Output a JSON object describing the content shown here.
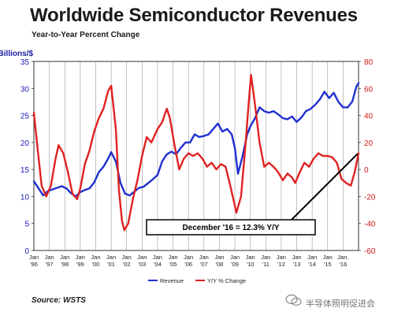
{
  "header": {
    "title": "Worldwide Semiconductor Revenues",
    "subtitle": "Year-to-Year Percent Change"
  },
  "footer": {
    "source": "Source: WSTS",
    "watermark": "半导体照明促进会"
  },
  "chart_data": {
    "type": "line",
    "left_axis_label": "Billions/$",
    "left_ylim": [
      0,
      35
    ],
    "left_ticks": [
      "0",
      "5",
      "10",
      "15",
      "20",
      "25",
      "30",
      "35"
    ],
    "right_ylim": [
      -60,
      80
    ],
    "right_ticks": [
      "-60",
      "-40",
      "-20",
      "0",
      "20",
      "40",
      "60",
      "80"
    ],
    "x_range": [
      1996,
      2017
    ],
    "x_tick_labels": [
      {
        "month": "Jan",
        "year": "'96"
      },
      {
        "month": "Jan",
        "year": "'97"
      },
      {
        "month": "Jan",
        "year": "'98"
      },
      {
        "month": "Jan",
        "year": "'99"
      },
      {
        "month": "Jan",
        "year": "'00"
      },
      {
        "month": "Jan",
        "year": "'01"
      },
      {
        "month": "Jan",
        "year": "'02"
      },
      {
        "month": "Jan",
        "year": "'03"
      },
      {
        "month": "Jan",
        "year": "'04"
      },
      {
        "month": "Jan",
        "year": "'05"
      },
      {
        "month": "Jan",
        "year": "'06"
      },
      {
        "month": "Jan",
        "year": "'07"
      },
      {
        "month": "Jan",
        "year": "'08"
      },
      {
        "month": "Jan",
        "year": "'09"
      },
      {
        "month": "Jan",
        "year": "'10"
      },
      {
        "month": "Jan",
        "year": "'11"
      },
      {
        "month": "Jan",
        "year": "'12"
      },
      {
        "month": "Jan",
        "year": "'13"
      },
      {
        "month": "Jan",
        "year": "'14"
      },
      {
        "month": "Jan",
        "year": "'15"
      },
      {
        "month": "Jan.",
        "year": "'16"
      }
    ],
    "grid": "vertical",
    "legend_position": "bottom",
    "series": [
      {
        "name": "Revenue",
        "axis": "left",
        "color": "#1f2fd0",
        "points": [
          [
            1996.0,
            12.8
          ],
          [
            1996.3,
            11.5
          ],
          [
            1996.6,
            10.2
          ],
          [
            1996.9,
            11.0
          ],
          [
            1997.2,
            11.3
          ],
          [
            1997.5,
            11.6
          ],
          [
            1997.8,
            11.9
          ],
          [
            1998.1,
            11.5
          ],
          [
            1998.4,
            10.6
          ],
          [
            1998.7,
            10.0
          ],
          [
            1999.0,
            10.8
          ],
          [
            1999.3,
            11.2
          ],
          [
            1999.6,
            11.5
          ],
          [
            1999.9,
            12.6
          ],
          [
            2000.2,
            14.5
          ],
          [
            2000.5,
            15.5
          ],
          [
            2000.8,
            17.0
          ],
          [
            2001.0,
            18.2
          ],
          [
            2001.3,
            16.5
          ],
          [
            2001.6,
            12.5
          ],
          [
            2001.9,
            10.5
          ],
          [
            2002.2,
            10.2
          ],
          [
            2002.5,
            10.9
          ],
          [
            2002.8,
            11.6
          ],
          [
            2003.1,
            11.8
          ],
          [
            2003.4,
            12.5
          ],
          [
            2003.7,
            13.2
          ],
          [
            2004.0,
            14.0
          ],
          [
            2004.3,
            16.5
          ],
          [
            2004.6,
            17.8
          ],
          [
            2004.9,
            18.3
          ],
          [
            2005.2,
            17.8
          ],
          [
            2005.5,
            19.0
          ],
          [
            2005.8,
            20.0
          ],
          [
            2006.1,
            20.0
          ],
          [
            2006.4,
            21.5
          ],
          [
            2006.7,
            21.0
          ],
          [
            2007.0,
            21.2
          ],
          [
            2007.3,
            21.5
          ],
          [
            2007.6,
            22.5
          ],
          [
            2007.9,
            23.5
          ],
          [
            2008.2,
            22.0
          ],
          [
            2008.5,
            22.5
          ],
          [
            2008.8,
            21.5
          ],
          [
            2009.0,
            19.0
          ],
          [
            2009.2,
            14.2
          ],
          [
            2009.5,
            17.5
          ],
          [
            2009.8,
            21.5
          ],
          [
            2010.0,
            23.0
          ],
          [
            2010.3,
            24.5
          ],
          [
            2010.6,
            26.5
          ],
          [
            2010.9,
            25.8
          ],
          [
            2011.2,
            25.5
          ],
          [
            2011.5,
            25.8
          ],
          [
            2011.8,
            25.2
          ],
          [
            2012.1,
            24.5
          ],
          [
            2012.4,
            24.3
          ],
          [
            2012.7,
            24.8
          ],
          [
            2013.0,
            23.8
          ],
          [
            2013.3,
            24.6
          ],
          [
            2013.6,
            25.8
          ],
          [
            2013.9,
            26.2
          ],
          [
            2014.2,
            27.0
          ],
          [
            2014.5,
            28.0
          ],
          [
            2014.8,
            29.4
          ],
          [
            2015.1,
            28.2
          ],
          [
            2015.4,
            29.2
          ],
          [
            2015.7,
            27.5
          ],
          [
            2016.0,
            26.5
          ],
          [
            2016.3,
            26.5
          ],
          [
            2016.6,
            27.6
          ],
          [
            2016.85,
            30.3
          ],
          [
            2017.0,
            31.0
          ]
        ]
      },
      {
        "name": "Y/Y % Change",
        "axis": "right",
        "color": "#e02222",
        "points": [
          [
            1996.0,
            42
          ],
          [
            1996.2,
            20
          ],
          [
            1996.5,
            -12
          ],
          [
            1996.8,
            -20
          ],
          [
            1997.1,
            -12
          ],
          [
            1997.4,
            8
          ],
          [
            1997.6,
            18
          ],
          [
            1997.9,
            12
          ],
          [
            1998.2,
            -2
          ],
          [
            1998.5,
            -18
          ],
          [
            1998.8,
            -22
          ],
          [
            1999.0,
            -14
          ],
          [
            1999.3,
            4
          ],
          [
            1999.6,
            14
          ],
          [
            1999.9,
            28
          ],
          [
            2000.2,
            38
          ],
          [
            2000.5,
            45
          ],
          [
            2000.8,
            58
          ],
          [
            2001.0,
            62
          ],
          [
            2001.3,
            30
          ],
          [
            2001.5,
            -15
          ],
          [
            2001.7,
            -38
          ],
          [
            2001.85,
            -45
          ],
          [
            2002.1,
            -40
          ],
          [
            2002.4,
            -22
          ],
          [
            2002.7,
            -8
          ],
          [
            2003.0,
            10
          ],
          [
            2003.3,
            24
          ],
          [
            2003.6,
            20
          ],
          [
            2004.0,
            30
          ],
          [
            2004.3,
            35
          ],
          [
            2004.6,
            45
          ],
          [
            2004.8,
            38
          ],
          [
            2005.1,
            18
          ],
          [
            2005.4,
            0
          ],
          [
            2005.7,
            8
          ],
          [
            2006.0,
            12
          ],
          [
            2006.3,
            10
          ],
          [
            2006.6,
            12
          ],
          [
            2006.9,
            8
          ],
          [
            2007.2,
            2
          ],
          [
            2007.5,
            5
          ],
          [
            2007.8,
            0
          ],
          [
            2008.1,
            4
          ],
          [
            2008.4,
            2
          ],
          [
            2008.7,
            -12
          ],
          [
            2008.9,
            -22
          ],
          [
            2009.1,
            -32
          ],
          [
            2009.4,
            -20
          ],
          [
            2009.7,
            20
          ],
          [
            2009.9,
            50
          ],
          [
            2010.05,
            70
          ],
          [
            2010.3,
            48
          ],
          [
            2010.6,
            20
          ],
          [
            2010.9,
            2
          ],
          [
            2011.2,
            5
          ],
          [
            2011.5,
            2
          ],
          [
            2011.8,
            -2
          ],
          [
            2012.1,
            -8
          ],
          [
            2012.4,
            -3
          ],
          [
            2012.7,
            -6
          ],
          [
            2012.9,
            -10
          ],
          [
            2013.2,
            -2
          ],
          [
            2013.5,
            5
          ],
          [
            2013.8,
            2
          ],
          [
            2014.1,
            8
          ],
          [
            2014.4,
            12
          ],
          [
            2014.7,
            10
          ],
          [
            2015.0,
            10
          ],
          [
            2015.3,
            9
          ],
          [
            2015.6,
            5
          ],
          [
            2015.9,
            -7
          ],
          [
            2016.2,
            -10
          ],
          [
            2016.5,
            -12
          ],
          [
            2016.75,
            -2
          ],
          [
            2017.0,
            12
          ]
        ]
      }
    ],
    "annotation": {
      "text": "December '16 = 12.3% Y/Y",
      "target": [
        2017.0,
        12.3
      ]
    }
  }
}
